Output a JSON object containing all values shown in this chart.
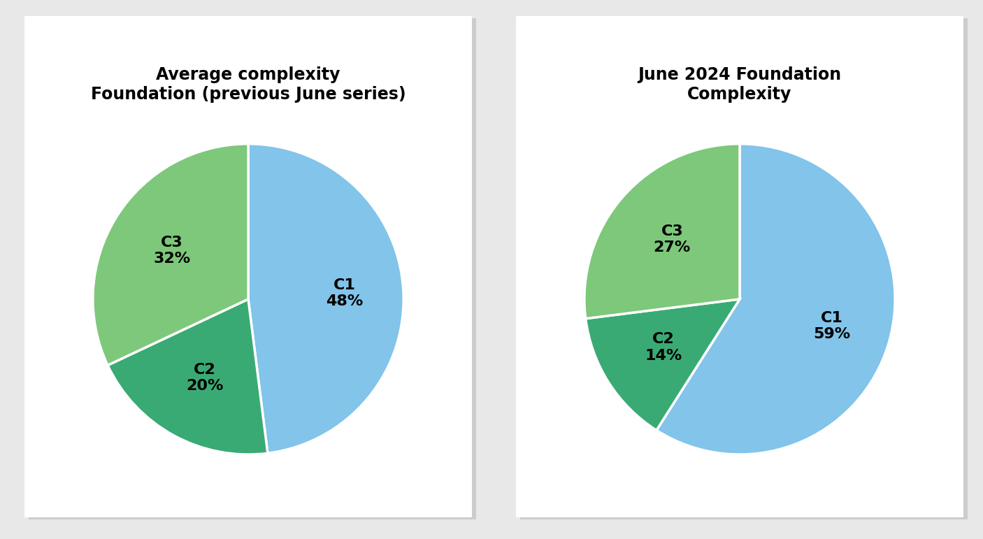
{
  "chart1": {
    "title": "Average complexity\nFoundation (previous June series)",
    "slices": [
      48,
      20,
      32
    ],
    "colors": [
      "#82C4EA",
      "#3AAA75",
      "#7DC87A"
    ],
    "labels": [
      "C1\n48%",
      "C2\n20%",
      "C3\n32%"
    ],
    "label_radii": [
      0.62,
      0.58,
      0.58
    ]
  },
  "chart2": {
    "title": "June 2024 Foundation\nComplexity",
    "slices": [
      59,
      14,
      27
    ],
    "colors": [
      "#82C4EA",
      "#3AAA75",
      "#7DC87A"
    ],
    "labels": [
      "C1\n59%",
      "C2\n14%",
      "C3\n27%"
    ],
    "label_radii": [
      0.62,
      0.58,
      0.58
    ]
  },
  "background_color": "#e8e8e8",
  "panel_color": "#ffffff",
  "title_fontsize": 17,
  "label_fontsize": 16,
  "label_fontweight": "bold",
  "wedge_linewidth": 2.5,
  "wedge_edgecolor": "#ffffff",
  "startangle": 90,
  "counterclock": false
}
